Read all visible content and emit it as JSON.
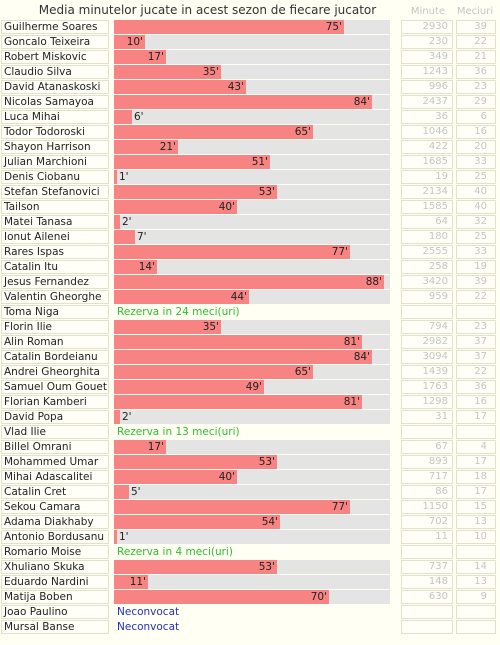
{
  "header": {
    "title": "Media minutelor jucate in acest sezon de fiecare jucator",
    "col_minutes": "Minute",
    "col_matches": "Meciuri"
  },
  "colors": {
    "bar": "#f88383",
    "track": "#e4e4e4",
    "reserve": "#2fbf2f",
    "unselected": "#2233bb"
  },
  "chart_data": {
    "type": "bar",
    "orientation": "horizontal",
    "title": "Media minutelor jucate in acest sezon de fiecare jucator",
    "xlim": [
      0,
      90
    ],
    "value_suffix": "'",
    "rows": [
      {
        "name": "Guilherme Soares",
        "avg": 75,
        "avg_label": "75'",
        "minutes": "2930",
        "matches": "39"
      },
      {
        "name": "Goncalo Teixeira",
        "avg": 10,
        "avg_label": "10'",
        "minutes": "230",
        "matches": "22"
      },
      {
        "name": "Robert Miskovic",
        "avg": 17,
        "avg_label": "17'",
        "minutes": "349",
        "matches": "21"
      },
      {
        "name": "Claudio Silva",
        "avg": 35,
        "avg_label": "35'",
        "minutes": "1243",
        "matches": "36"
      },
      {
        "name": "David Atanaskoski",
        "avg": 43,
        "avg_label": "43'",
        "minutes": "996",
        "matches": "23"
      },
      {
        "name": "Nicolas Samayoa",
        "avg": 84,
        "avg_label": "84'",
        "minutes": "2437",
        "matches": "29"
      },
      {
        "name": "Luca Mihai",
        "avg": 6,
        "avg_label": "6'",
        "minutes": "36",
        "matches": "6"
      },
      {
        "name": "Todor Todoroski",
        "avg": 65,
        "avg_label": "65'",
        "minutes": "1046",
        "matches": "16"
      },
      {
        "name": "Shayon Harrison",
        "avg": 21,
        "avg_label": "21'",
        "minutes": "422",
        "matches": "20"
      },
      {
        "name": "Julian Marchioni",
        "avg": 51,
        "avg_label": "51'",
        "minutes": "1685",
        "matches": "33"
      },
      {
        "name": "Denis Ciobanu",
        "avg": 1,
        "avg_label": "1'",
        "minutes": "19",
        "matches": "25"
      },
      {
        "name": "Stefan Stefanovici",
        "avg": 53,
        "avg_label": "53'",
        "minutes": "2134",
        "matches": "40"
      },
      {
        "name": "Tailson",
        "avg": 40,
        "avg_label": "40'",
        "minutes": "1585",
        "matches": "40"
      },
      {
        "name": "Matei Tanasa",
        "avg": 2,
        "avg_label": "2'",
        "minutes": "64",
        "matches": "32"
      },
      {
        "name": "Ionut Ailenei",
        "avg": 7,
        "avg_label": "7'",
        "minutes": "180",
        "matches": "25"
      },
      {
        "name": "Rares Ispas",
        "avg": 77,
        "avg_label": "77'",
        "minutes": "2555",
        "matches": "33"
      },
      {
        "name": "Catalin Itu",
        "avg": 14,
        "avg_label": "14'",
        "minutes": "258",
        "matches": "19"
      },
      {
        "name": "Jesus Fernandez",
        "avg": 88,
        "avg_label": "88'",
        "minutes": "3420",
        "matches": "39"
      },
      {
        "name": "Valentin Gheorghe",
        "avg": 44,
        "avg_label": "44'",
        "minutes": "959",
        "matches": "22"
      },
      {
        "name": "Toma Niga",
        "status": "Rezerva in 24 meci(uri)",
        "status_type": "reserve",
        "minutes": "",
        "matches": ""
      },
      {
        "name": "Florin Ilie",
        "avg": 35,
        "avg_label": "35'",
        "minutes": "794",
        "matches": "23"
      },
      {
        "name": "Alin Roman",
        "avg": 81,
        "avg_label": "81'",
        "minutes": "2982",
        "matches": "37"
      },
      {
        "name": "Catalin Bordeianu",
        "avg": 84,
        "avg_label": "84'",
        "minutes": "3094",
        "matches": "37"
      },
      {
        "name": "Andrei Gheorghita",
        "avg": 65,
        "avg_label": "65'",
        "minutes": "1439",
        "matches": "22"
      },
      {
        "name": "Samuel Oum Gouet",
        "avg": 49,
        "avg_label": "49'",
        "minutes": "1763",
        "matches": "36"
      },
      {
        "name": "Florian Kamberi",
        "avg": 81,
        "avg_label": "81'",
        "minutes": "1298",
        "matches": "16"
      },
      {
        "name": "David Popa",
        "avg": 2,
        "avg_label": "2'",
        "minutes": "31",
        "matches": "17"
      },
      {
        "name": "Vlad Ilie",
        "status": "Rezerva in 13 meci(uri)",
        "status_type": "reserve",
        "minutes": "",
        "matches": ""
      },
      {
        "name": "Billel Omrani",
        "avg": 17,
        "avg_label": "17'",
        "minutes": "67",
        "matches": "4"
      },
      {
        "name": "Mohammed Umar",
        "avg": 53,
        "avg_label": "53'",
        "minutes": "893",
        "matches": "17"
      },
      {
        "name": "Mihai Adascalitei",
        "avg": 40,
        "avg_label": "40'",
        "minutes": "717",
        "matches": "18"
      },
      {
        "name": "Catalin Cret",
        "avg": 5,
        "avg_label": "5'",
        "minutes": "86",
        "matches": "17"
      },
      {
        "name": "Sekou Camara",
        "avg": 77,
        "avg_label": "77'",
        "minutes": "1150",
        "matches": "15"
      },
      {
        "name": "Adama Diakhaby",
        "avg": 54,
        "avg_label": "54'",
        "minutes": "702",
        "matches": "13"
      },
      {
        "name": "Antonio Bordusanu",
        "avg": 1,
        "avg_label": "1'",
        "minutes": "11",
        "matches": "10"
      },
      {
        "name": "Romario Moise",
        "status": "Rezerva in 4 meci(uri)",
        "status_type": "reserve",
        "minutes": "",
        "matches": ""
      },
      {
        "name": "Xhuliano Skuka",
        "avg": 53,
        "avg_label": "53'",
        "minutes": "737",
        "matches": "14"
      },
      {
        "name": "Eduardo Nardini",
        "avg": 11,
        "avg_label": "11'",
        "minutes": "148",
        "matches": "13"
      },
      {
        "name": "Matija Boben",
        "avg": 70,
        "avg_label": "70'",
        "minutes": "630",
        "matches": "9"
      },
      {
        "name": "Joao Paulino",
        "status": "Neconvocat",
        "status_type": "unselected",
        "minutes": "",
        "matches": ""
      },
      {
        "name": "Mursal Banse",
        "status": "Neconvocat",
        "status_type": "unselected",
        "minutes": "",
        "matches": ""
      }
    ]
  }
}
